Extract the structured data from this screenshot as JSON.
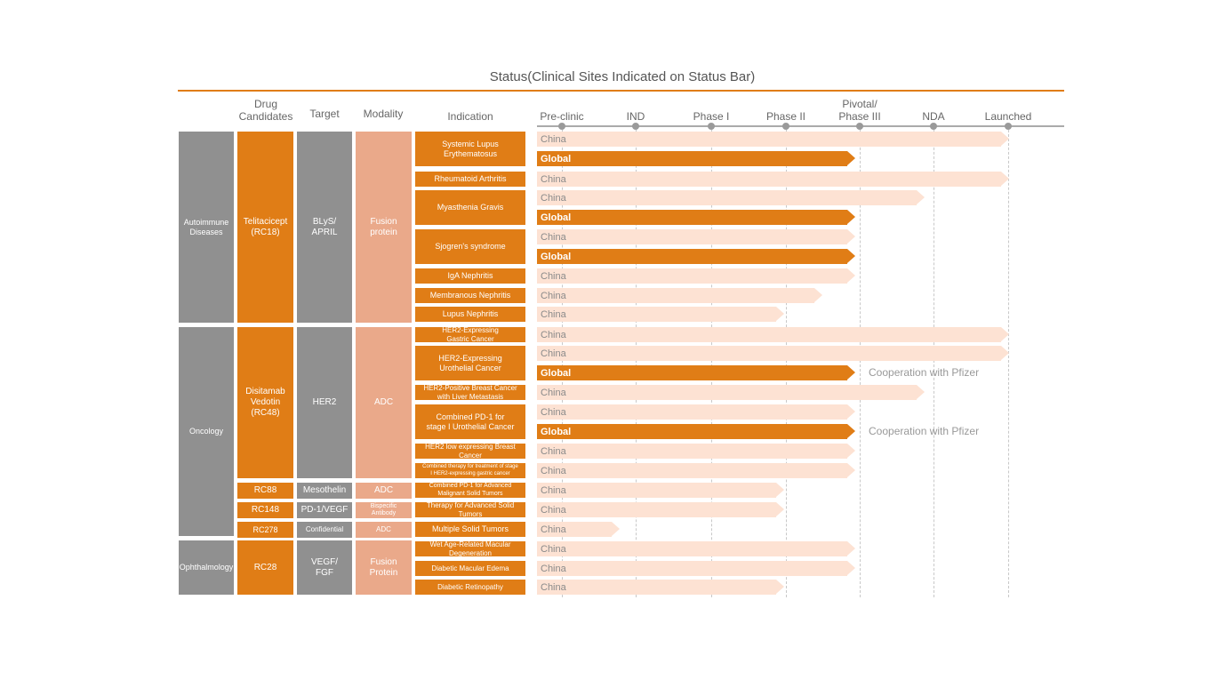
{
  "title": "Status(Clinical Sites Indicated on Status Bar)",
  "headers": {
    "drug_candidates": "Drug\nCandidates",
    "target": "Target",
    "modality": "Modality",
    "indication": "Indication"
  },
  "stages": [
    "Pre-clinic",
    "IND",
    "Phase I",
    "Phase II",
    "Pivotal/\nPhase III",
    "NDA",
    "Launched"
  ],
  "categories": [
    "Autoimmune\nDiseases",
    "Oncology",
    "Ophthalmology"
  ],
  "drugs": [
    "Telitacicept\n(RC18)",
    "Disitamab\nVedotin\n(RC48)",
    "RC88",
    "RC148",
    "RC278",
    "RC28"
  ],
  "targets": [
    "BLyS/\nAPRIL",
    "HER2",
    "Mesothelin",
    "PD-1/VEGF",
    "Confidential",
    "VEGF/\nFGF"
  ],
  "modalities": [
    "Fusion\nprotein",
    "ADC",
    "ADC",
    "Bispecific Antibody",
    "ADC",
    "Fusion\nProtein"
  ],
  "indications": [
    "Systemic Lupus\nErythematosus",
    "Rheumatoid Arthritis",
    "Myasthenia Gravis",
    "Sjogren's syndrome",
    "IgA Nephritis",
    "Membranous Nephritis",
    "Lupus Nephritis",
    "HER2-Expressing\nGastric Cancer",
    "HER2-Expressing\nUrothelial Cancer",
    "HER2-Positive Breast Cancer\nwith Liver Metastasis",
    "Combined PD-1 for\nstage I Urothelial Cancer",
    "HER2 low expressing Breast Cancer",
    "Combined therapy for treatment of stage\nI HER2-expressing gastric cancer",
    "Combined PD-1 for Advanced\nMalignant Solid Tumors",
    "Therapy for Advanced Solid Tumors",
    "Multiple Solid Tumors",
    "Wet Age-Related Macular\nDegeneration",
    "Diabetic Macular Edema",
    "Diabetic Retinopathy"
  ],
  "bars": [
    {
      "site": "China",
      "stage": "Launched"
    },
    {
      "site": "Global",
      "stage": "Pivotal/Phase III"
    },
    {
      "site": "China",
      "stage": "Launched"
    },
    {
      "site": "China",
      "stage": "NDA"
    },
    {
      "site": "Global",
      "stage": "Pivotal/Phase III"
    },
    {
      "site": "China",
      "stage": "Pivotal/Phase III"
    },
    {
      "site": "Global",
      "stage": "Pivotal/Phase III"
    },
    {
      "site": "China",
      "stage": "Pivotal/Phase III"
    },
    {
      "site": "China",
      "stage": "Phase III"
    },
    {
      "site": "China",
      "stage": "Phase II"
    },
    {
      "site": "China",
      "stage": "Launched"
    },
    {
      "site": "China",
      "stage": "Launched"
    },
    {
      "site": "Global",
      "stage": "Pivotal/Phase III",
      "note": "Cooperation with Pfizer"
    },
    {
      "site": "China",
      "stage": "NDA"
    },
    {
      "site": "China",
      "stage": "Pivotal/Phase III"
    },
    {
      "site": "Global",
      "stage": "Pivotal/Phase III",
      "note": "Cooperation with Pfizer"
    },
    {
      "site": "China",
      "stage": "Pivotal/Phase III"
    },
    {
      "site": "China",
      "stage": "Pivotal/Phase III"
    },
    {
      "site": "China",
      "stage": "Phase II"
    },
    {
      "site": "China",
      "stage": "Phase II"
    },
    {
      "site": "China",
      "stage": "Pre-clinic"
    },
    {
      "site": "China",
      "stage": "Pivotal/Phase III"
    },
    {
      "site": "China",
      "stage": "Pivotal/Phase III"
    },
    {
      "site": "China",
      "stage": "Phase II"
    }
  ],
  "colors": {
    "accent": "#e07d16",
    "grey": "#909090",
    "salmon": "#eaa98a",
    "china_bar": "#fde2d3"
  }
}
